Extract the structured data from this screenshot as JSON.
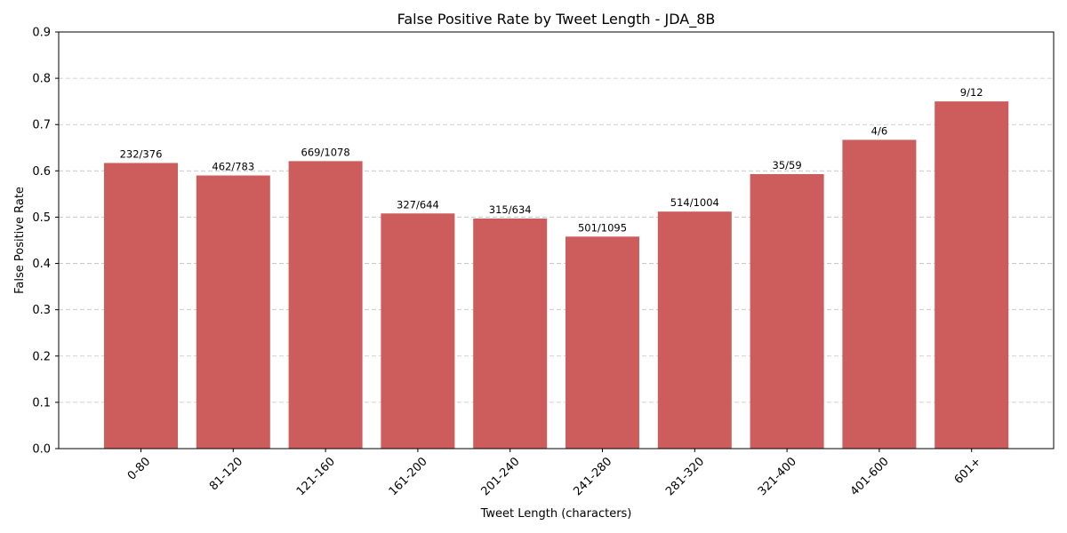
{
  "chart_data": {
    "type": "bar",
    "title": "False Positive Rate by Tweet Length - JDA_8B",
    "xlabel": "Tweet Length (characters)",
    "ylabel": "False Positive Rate",
    "ylim": [
      0,
      0.9
    ],
    "yticks": [
      "0.0",
      "0.1",
      "0.2",
      "0.3",
      "0.4",
      "0.5",
      "0.6",
      "0.7",
      "0.8",
      "0.9"
    ],
    "grid": "horizontal dashed",
    "bar_color": "#cd5c5c",
    "categories": [
      "0-80",
      "81-120",
      "121-160",
      "161-200",
      "201-240",
      "241-280",
      "281-320",
      "321-400",
      "401-600",
      "601+"
    ],
    "values": [
      0.617,
      0.59,
      0.621,
      0.508,
      0.497,
      0.458,
      0.512,
      0.593,
      0.667,
      0.75
    ],
    "data_labels": [
      "232/376",
      "462/783",
      "669/1078",
      "327/644",
      "315/634",
      "501/1095",
      "514/1004",
      "35/59",
      "4/6",
      "9/12"
    ]
  }
}
